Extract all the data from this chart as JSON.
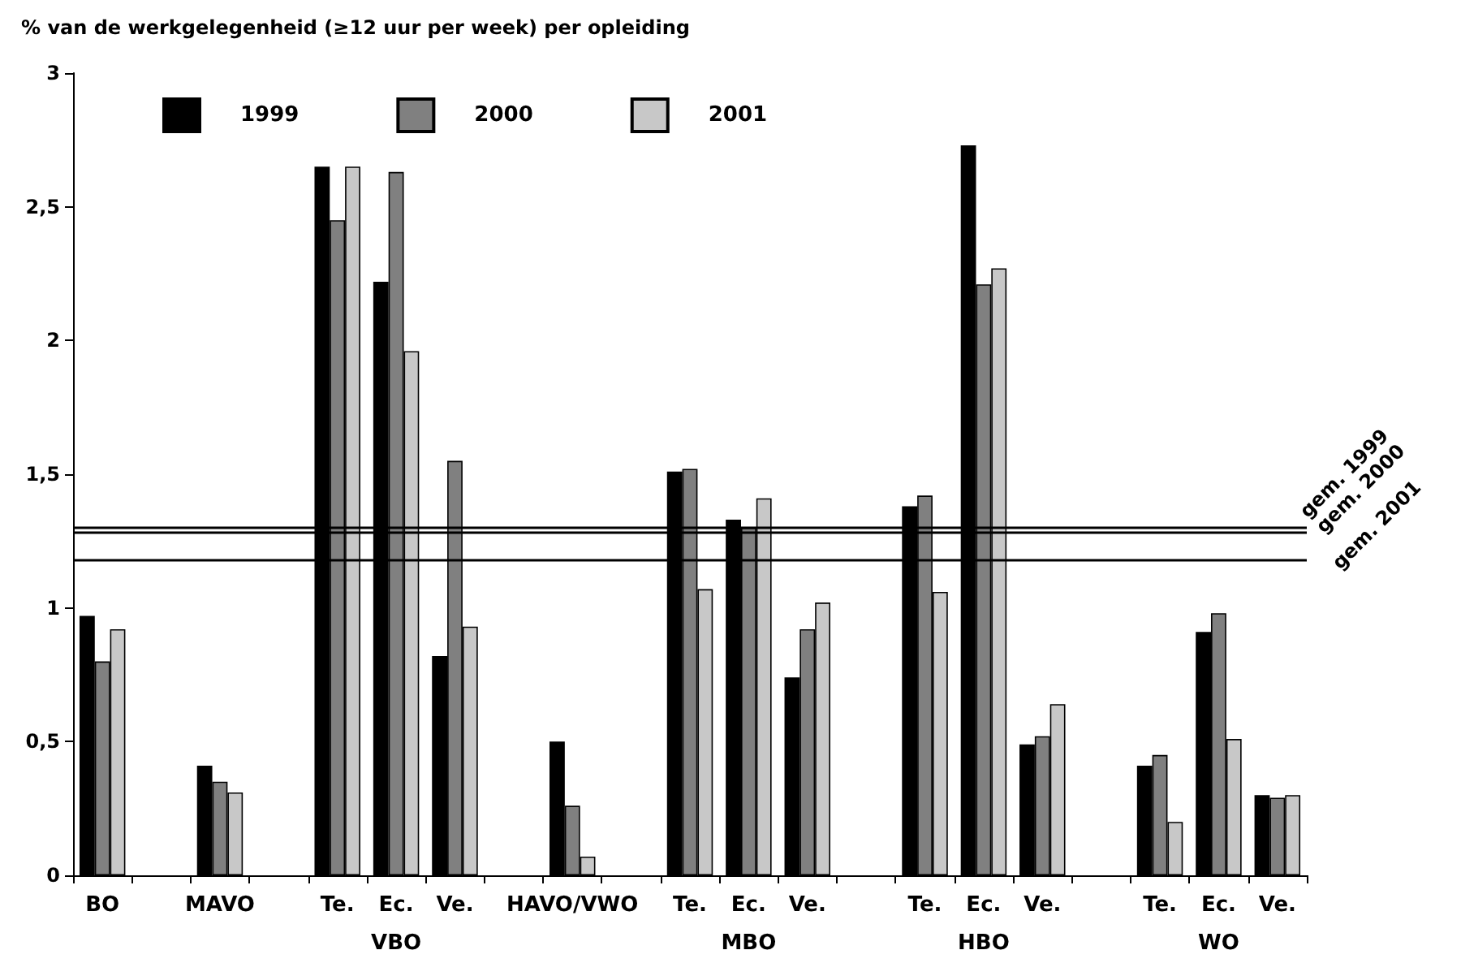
{
  "chart_data": {
    "type": "bar",
    "title": "% van de werkgelegenheid (≥12 uur per week) per opleiding",
    "categories": [
      "BO",
      null,
      "MAVO",
      null,
      "Te.",
      "Ec.",
      "Ve.",
      null,
      "HAVO/VWO",
      null,
      "Te.",
      "Ec.",
      "Ve.",
      null,
      "Te.",
      "Ec.",
      "Ve.",
      null,
      "Te.",
      "Ec.",
      "Ve."
    ],
    "series": [
      {
        "name": "1999",
        "color": "#000000",
        "values": [
          0.97,
          null,
          0.41,
          null,
          2.65,
          2.22,
          0.82,
          null,
          0.5,
          null,
          1.51,
          1.33,
          0.74,
          null,
          1.38,
          2.73,
          0.49,
          null,
          0.41,
          0.91,
          0.3
        ]
      },
      {
        "name": "2000",
        "color": "#808080",
        "values": [
          0.8,
          null,
          0.35,
          null,
          2.45,
          2.63,
          1.55,
          null,
          0.26,
          null,
          1.52,
          1.3,
          0.92,
          null,
          1.42,
          2.21,
          0.52,
          null,
          0.45,
          0.98,
          0.29
        ]
      },
      {
        "name": "2001",
        "color": "#c8c8c8",
        "values": [
          0.92,
          null,
          0.31,
          null,
          2.65,
          1.96,
          0.93,
          null,
          0.07,
          null,
          1.07,
          1.41,
          1.02,
          null,
          1.06,
          2.27,
          0.64,
          null,
          0.2,
          0.51,
          0.3
        ]
      }
    ],
    "ylim": [
      0,
      3
    ],
    "yticks": [
      0,
      {
        "value": 0.5,
        "label": "0,5"
      },
      1,
      {
        "value": 1.5,
        "label": "1,5"
      },
      2,
      {
        "value": 2.5,
        "label": "2,5"
      },
      3
    ],
    "ref_lines": [
      {
        "axis": "y",
        "value": 1.3,
        "label": "gem. 1999",
        "color": "#000000"
      },
      {
        "axis": "y",
        "value": 1.28,
        "label": "gem. 2000",
        "color": "#000000"
      },
      {
        "axis": "y",
        "value": 1.18,
        "label": "gem. 2001",
        "color": "#000000"
      }
    ],
    "annotations": [
      "VBO",
      "MBO",
      "HBO",
      "WO"
    ],
    "grid": false,
    "legend": "top left"
  }
}
